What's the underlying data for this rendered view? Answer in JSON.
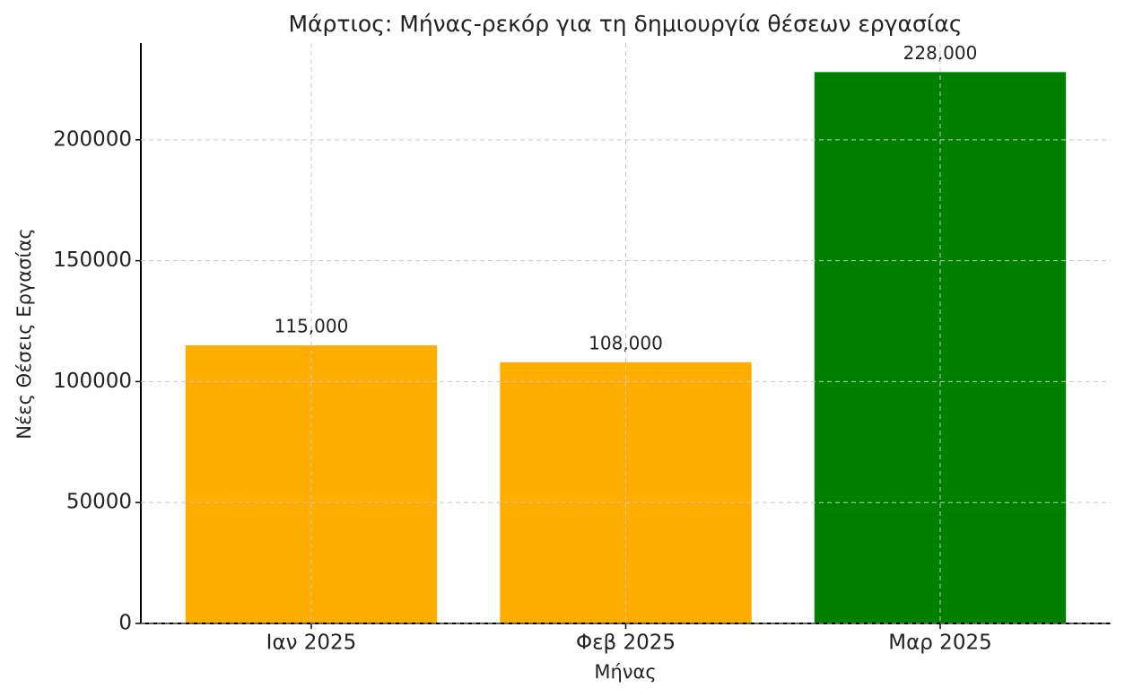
{
  "chart_data": {
    "type": "bar",
    "title": "Μάρτιος: Μήνας-ρεκόρ για τη δημιουργία θέσεων εργασίας",
    "x_label": "Μήνας",
    "y_label": "Νέες Θέσεις Εργασίας",
    "categories": [
      "Ιαν 2025",
      "Φεβ 2025",
      "Μαρ 2025"
    ],
    "values": [
      115000,
      108000,
      228000
    ],
    "value_labels": [
      "115,000",
      "108,000",
      "228,000"
    ],
    "colors": [
      "#ffae00",
      "#ffae00",
      "#008000"
    ],
    "ylim": [
      0,
      240000
    ],
    "yticks": [
      0,
      50000,
      100000,
      150000,
      200000
    ],
    "grid": true
  }
}
